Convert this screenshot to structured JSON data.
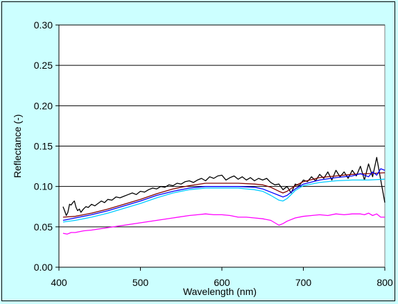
{
  "chart_data": {
    "type": "line",
    "xlabel": "Wavelength (nm)",
    "ylabel": "Reflectance (-)",
    "xlim": [
      400,
      800
    ],
    "ylim": [
      0.0,
      0.3
    ],
    "xticks": [
      "400",
      "500",
      "600",
      "700",
      "800"
    ],
    "yticks": [
      "0.00",
      "0.05",
      "0.10",
      "0.15",
      "0.20",
      "0.25",
      "0.30"
    ],
    "grid": "horizontal",
    "legend": "none",
    "series": [
      {
        "color": "#000000",
        "x": [
          405,
          407,
          409,
          411,
          413,
          415,
          417,
          419,
          421,
          423,
          425,
          427,
          430,
          433,
          436,
          440,
          444,
          448,
          452,
          456,
          460,
          465,
          470,
          475,
          480,
          485,
          490,
          495,
          500,
          505,
          510,
          515,
          520,
          525,
          530,
          535,
          540,
          545,
          550,
          555,
          560,
          565,
          570,
          575,
          580,
          585,
          590,
          595,
          600,
          605,
          610,
          615,
          620,
          625,
          630,
          635,
          640,
          645,
          650,
          655,
          660,
          665,
          670,
          675,
          680,
          685,
          690,
          695,
          700,
          705,
          710,
          715,
          720,
          725,
          730,
          735,
          740,
          745,
          750,
          755,
          760,
          765,
          770,
          775,
          780,
          785,
          790,
          795,
          800
        ],
        "values": [
          0.075,
          0.07,
          0.064,
          0.068,
          0.078,
          0.077,
          0.08,
          0.082,
          0.074,
          0.07,
          0.072,
          0.068,
          0.072,
          0.075,
          0.074,
          0.078,
          0.076,
          0.079,
          0.082,
          0.08,
          0.084,
          0.083,
          0.087,
          0.086,
          0.088,
          0.09,
          0.092,
          0.09,
          0.094,
          0.093,
          0.096,
          0.098,
          0.097,
          0.1,
          0.099,
          0.102,
          0.101,
          0.104,
          0.103,
          0.106,
          0.107,
          0.105,
          0.108,
          0.11,
          0.107,
          0.112,
          0.11,
          0.113,
          0.114,
          0.108,
          0.111,
          0.113,
          0.109,
          0.112,
          0.108,
          0.111,
          0.107,
          0.11,
          0.108,
          0.11,
          0.105,
          0.102,
          0.103,
          0.096,
          0.1,
          0.092,
          0.103,
          0.101,
          0.108,
          0.106,
          0.112,
          0.107,
          0.115,
          0.11,
          0.118,
          0.108,
          0.12,
          0.112,
          0.118,
          0.11,
          0.12,
          0.113,
          0.125,
          0.108,
          0.128,
          0.112,
          0.136,
          0.108,
          0.08
        ]
      },
      {
        "color": "#800000",
        "x": [
          405,
          420,
          440,
          460,
          480,
          500,
          520,
          540,
          560,
          580,
          600,
          620,
          640,
          650,
          660,
          670,
          675,
          680,
          690,
          700,
          720,
          740,
          760,
          780,
          800
        ],
        "values": [
          0.062,
          0.063,
          0.067,
          0.072,
          0.078,
          0.084,
          0.091,
          0.097,
          0.101,
          0.104,
          0.104,
          0.104,
          0.103,
          0.102,
          0.099,
          0.094,
          0.092,
          0.094,
          0.101,
          0.106,
          0.111,
          0.113,
          0.115,
          0.116,
          0.117
        ]
      },
      {
        "color": "#0000ff",
        "x": [
          405,
          420,
          440,
          460,
          480,
          500,
          520,
          540,
          560,
          580,
          600,
          620,
          640,
          650,
          660,
          670,
          675,
          680,
          690,
          700,
          720,
          740,
          760,
          770,
          780,
          785,
          790,
          795,
          800
        ],
        "values": [
          0.058,
          0.061,
          0.065,
          0.07,
          0.076,
          0.082,
          0.089,
          0.094,
          0.098,
          0.1,
          0.1,
          0.1,
          0.099,
          0.097,
          0.093,
          0.089,
          0.087,
          0.089,
          0.097,
          0.103,
          0.108,
          0.111,
          0.113,
          0.116,
          0.112,
          0.118,
          0.114,
          0.122,
          0.12
        ]
      },
      {
        "color": "#00ccff",
        "x": [
          405,
          420,
          440,
          460,
          480,
          500,
          520,
          540,
          560,
          580,
          600,
          620,
          640,
          650,
          660,
          670,
          675,
          680,
          690,
          700,
          720,
          740,
          760,
          780,
          800
        ],
        "values": [
          0.056,
          0.058,
          0.062,
          0.067,
          0.073,
          0.079,
          0.086,
          0.092,
          0.096,
          0.098,
          0.098,
          0.098,
          0.096,
          0.094,
          0.089,
          0.083,
          0.082,
          0.085,
          0.095,
          0.101,
          0.105,
          0.107,
          0.108,
          0.108,
          0.109
        ]
      },
      {
        "color": "#ff00ff",
        "x": [
          405,
          410,
          415,
          420,
          430,
          440,
          460,
          480,
          500,
          520,
          540,
          560,
          570,
          580,
          590,
          600,
          610,
          620,
          630,
          640,
          650,
          660,
          665,
          670,
          675,
          680,
          690,
          700,
          710,
          720,
          730,
          740,
          750,
          760,
          770,
          775,
          780,
          785,
          790,
          795,
          800
        ],
        "values": [
          0.042,
          0.041,
          0.043,
          0.043,
          0.045,
          0.046,
          0.049,
          0.052,
          0.055,
          0.058,
          0.061,
          0.064,
          0.065,
          0.066,
          0.065,
          0.065,
          0.064,
          0.062,
          0.062,
          0.061,
          0.06,
          0.058,
          0.055,
          0.052,
          0.054,
          0.057,
          0.061,
          0.063,
          0.064,
          0.065,
          0.064,
          0.066,
          0.065,
          0.066,
          0.066,
          0.065,
          0.067,
          0.064,
          0.066,
          0.062,
          0.062
        ]
      }
    ]
  }
}
